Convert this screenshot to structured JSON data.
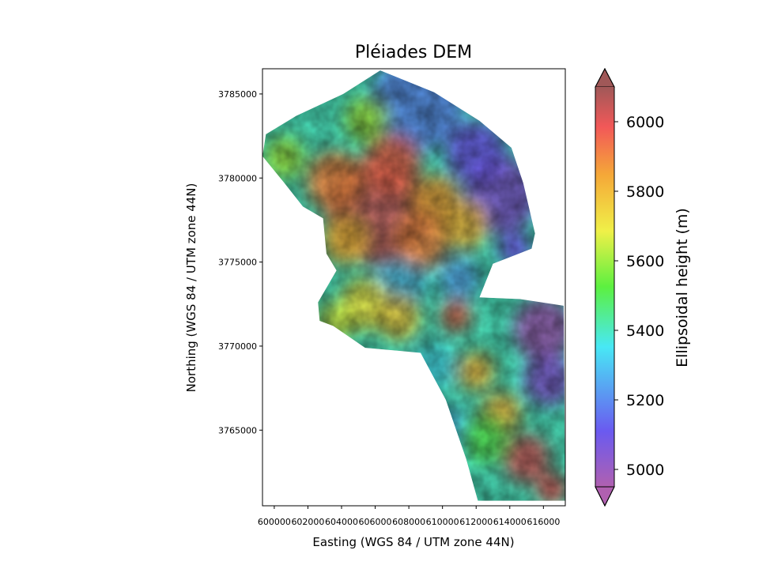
{
  "figure_title": "Pléiades DEM",
  "chart_data": {
    "type": "heatmap",
    "title": "Pléiades DEM",
    "xlabel": "Easting (WGS 84 / UTM zone 44N)",
    "ylabel": "Northing (WGS 84 / UTM zone 44N)",
    "xlim": [
      599300,
      617300
    ],
    "ylim": [
      3760500,
      3786500
    ],
    "xticks": [
      600000,
      602000,
      604000,
      606000,
      608000,
      610000,
      612000,
      614000,
      616000
    ],
    "xtick_labels": [
      "600000",
      "602000",
      "604000",
      "606000",
      "608000",
      "610000",
      "612000",
      "614000",
      "616000"
    ],
    "yticks": [
      3765000,
      3770000,
      3775000,
      3780000,
      3785000
    ],
    "ytick_labels": [
      "3765000",
      "3770000",
      "3775000",
      "3780000",
      "3785000"
    ],
    "colorbar": {
      "label": "Ellipsoidal height (m)",
      "range": [
        4950,
        6100
      ],
      "ticks": [
        5000,
        5200,
        5400,
        5600,
        5800,
        6000
      ],
      "tick_labels": [
        "5000",
        "5200",
        "5400",
        "5600",
        "5800",
        "6000"
      ],
      "extend": "both",
      "colormap": "rainbow with light alpha, hillshaded",
      "colors": [
        "#b060b0",
        "#6a5af0",
        "#48e8f5",
        "#5cf040",
        "#f0f048",
        "#f5a838",
        "#f25858",
        "#a05858"
      ]
    },
    "footprint_polygon": [
      [
        606300,
        3786400
      ],
      [
        609500,
        3785100
      ],
      [
        612200,
        3783400
      ],
      [
        614100,
        3781800
      ],
      [
        614800,
        3779700
      ],
      [
        615500,
        3776700
      ],
      [
        615300,
        3775800
      ],
      [
        613000,
        3774900
      ],
      [
        612200,
        3772900
      ],
      [
        614600,
        3772800
      ],
      [
        617200,
        3772400
      ],
      [
        617300,
        3760800
      ],
      [
        612100,
        3760800
      ],
      [
        611400,
        3763300
      ],
      [
        610200,
        3766800
      ],
      [
        608700,
        3769600
      ],
      [
        605400,
        3769900
      ],
      [
        603500,
        3771200
      ],
      [
        602700,
        3771500
      ],
      [
        602600,
        3772600
      ],
      [
        603700,
        3774500
      ],
      [
        603100,
        3775500
      ],
      [
        602900,
        3777600
      ],
      [
        601700,
        3778300
      ],
      [
        600600,
        3779700
      ],
      [
        599300,
        3781300
      ],
      [
        599500,
        3782600
      ],
      [
        601300,
        3783700
      ],
      [
        604100,
        3785000
      ]
    ],
    "relief_features": [
      {
        "x": 606000,
        "y": 3778000,
        "r": 3000,
        "height": 6050
      },
      {
        "x": 603600,
        "y": 3779800,
        "r": 1700,
        "height": 5900
      },
      {
        "x": 607000,
        "y": 3780800,
        "r": 1700,
        "height": 5950
      },
      {
        "x": 609600,
        "y": 3778600,
        "r": 1500,
        "height": 5850
      },
      {
        "x": 608800,
        "y": 3776300,
        "r": 1600,
        "height": 5900
      },
      {
        "x": 611300,
        "y": 3777200,
        "r": 1400,
        "height": 5800
      },
      {
        "x": 604200,
        "y": 3776300,
        "r": 1400,
        "height": 5800
      },
      {
        "x": 600600,
        "y": 3781200,
        "r": 1200,
        "height": 5600
      },
      {
        "x": 605400,
        "y": 3772500,
        "r": 1500,
        "height": 5700
      },
      {
        "x": 607400,
        "y": 3771700,
        "r": 1300,
        "height": 5750
      },
      {
        "x": 603700,
        "y": 3771500,
        "r": 1100,
        "height": 5650
      },
      {
        "x": 610800,
        "y": 3771800,
        "r": 900,
        "height": 5950
      },
      {
        "x": 612000,
        "y": 3768500,
        "r": 1100,
        "height": 5800
      },
      {
        "x": 613500,
        "y": 3766000,
        "r": 1200,
        "height": 5800
      },
      {
        "x": 615000,
        "y": 3763300,
        "r": 1400,
        "height": 6050
      },
      {
        "x": 616500,
        "y": 3761500,
        "r": 900,
        "height": 6000
      },
      {
        "x": 612500,
        "y": 3764500,
        "r": 1400,
        "height": 5500
      },
      {
        "x": 605500,
        "y": 3783500,
        "r": 1300,
        "height": 5600
      }
    ],
    "low_features": [
      {
        "x": 608500,
        "y": 3784500,
        "r": 2800,
        "height": 5200
      },
      {
        "x": 613500,
        "y": 3779000,
        "r": 2200,
        "height": 5050
      },
      {
        "x": 612000,
        "y": 3781500,
        "r": 1800,
        "height": 5100
      },
      {
        "x": 616000,
        "y": 3771000,
        "r": 1800,
        "height": 4980
      },
      {
        "x": 616300,
        "y": 3768000,
        "r": 1500,
        "height": 5050
      },
      {
        "x": 607500,
        "y": 3774000,
        "r": 1600,
        "height": 5300
      },
      {
        "x": 611000,
        "y": 3774000,
        "r": 1200,
        "height": 5250
      },
      {
        "x": 610200,
        "y": 3764800,
        "r": 1500,
        "height": 5300
      },
      {
        "x": 609500,
        "y": 3768800,
        "r": 1300,
        "height": 5350
      },
      {
        "x": 614300,
        "y": 3775800,
        "r": 1000,
        "height": 5100
      }
    ]
  }
}
